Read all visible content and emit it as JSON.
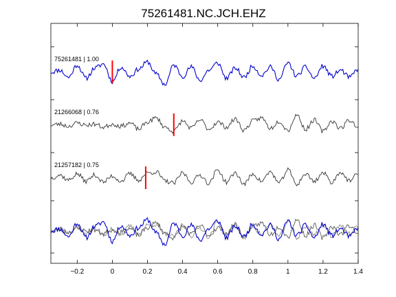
{
  "chart_data": {
    "type": "line",
    "title": "75261481.NC.JCH.EHZ",
    "xlabel": "",
    "ylabel": "",
    "xlim": [
      -0.35,
      1.4
    ],
    "x_ticks": [
      -0.2,
      0,
      0.2,
      0.4,
      0.6,
      0.8,
      1,
      1.2,
      1.4
    ],
    "x_tick_labels": [
      "−0.2",
      "0",
      "0.2",
      "0.4",
      "0.6",
      "0.8",
      "1",
      "1.2",
      "1.4"
    ],
    "grid": false,
    "legend": "none",
    "traces": [
      {
        "label": "75261481 | 1.00",
        "color": "#0000cc",
        "pick_time": 0.0,
        "baseline_offset": 0,
        "seed": 11,
        "points": [
          [
            -0.35,
            0.0
          ],
          [
            -0.3,
            0.2
          ],
          [
            -0.25,
            -0.5
          ],
          [
            -0.2,
            0.7
          ],
          [
            -0.15,
            -0.6
          ],
          [
            -0.1,
            0.4
          ],
          [
            -0.05,
            0.8
          ],
          [
            0,
            -0.9
          ],
          [
            0.05,
            0.5
          ],
          [
            0.1,
            -0.4
          ],
          [
            0.15,
            0.3
          ],
          [
            0.2,
            1.0
          ],
          [
            0.25,
            -0.2
          ],
          [
            0.3,
            -1.2
          ],
          [
            0.35,
            0.7
          ],
          [
            0.4,
            -0.4
          ],
          [
            0.45,
            0.5
          ],
          [
            0.5,
            -0.8
          ],
          [
            0.55,
            0.2
          ],
          [
            0.6,
            0.9
          ],
          [
            0.65,
            -0.6
          ],
          [
            0.7,
            0.4
          ],
          [
            0.75,
            -0.5
          ],
          [
            0.8,
            0.6
          ],
          [
            0.85,
            -0.3
          ],
          [
            0.9,
            0.5
          ],
          [
            0.95,
            -0.7
          ],
          [
            1.0,
            0.9
          ],
          [
            1.05,
            -0.4
          ],
          [
            1.1,
            0.5
          ],
          [
            1.15,
            -0.6
          ],
          [
            1.2,
            0.6
          ],
          [
            1.25,
            -0.4
          ],
          [
            1.3,
            0.2
          ],
          [
            1.35,
            -0.5
          ],
          [
            1.4,
            0.3
          ]
        ]
      },
      {
        "label": "21266068 | 0.76",
        "color": "#333333",
        "pick_time": 0.35,
        "baseline_offset": 1,
        "seed": 23,
        "points": [
          [
            -0.35,
            0.0
          ],
          [
            -0.3,
            0.1
          ],
          [
            -0.25,
            -0.1
          ],
          [
            -0.2,
            0.2
          ],
          [
            -0.15,
            0.0
          ],
          [
            -0.1,
            0.1
          ],
          [
            -0.05,
            -0.2
          ],
          [
            0,
            0.1
          ],
          [
            0.05,
            -0.1
          ],
          [
            0.1,
            0.2
          ],
          [
            0.15,
            -0.4
          ],
          [
            0.2,
            0.3
          ],
          [
            0.25,
            0.7
          ],
          [
            0.3,
            -0.2
          ],
          [
            0.35,
            -0.6
          ],
          [
            0.4,
            0.4
          ],
          [
            0.45,
            -0.3
          ],
          [
            0.5,
            0.5
          ],
          [
            0.55,
            -0.4
          ],
          [
            0.6,
            0.3
          ],
          [
            0.65,
            -0.2
          ],
          [
            0.7,
            0.6
          ],
          [
            0.75,
            -0.5
          ],
          [
            0.8,
            0.4
          ],
          [
            0.85,
            0.7
          ],
          [
            0.9,
            -0.3
          ],
          [
            0.95,
            0.4
          ],
          [
            1.0,
            -0.5
          ],
          [
            1.05,
            1.0
          ],
          [
            1.1,
            -0.4
          ],
          [
            1.15,
            0.5
          ],
          [
            1.2,
            -0.6
          ],
          [
            1.25,
            0.4
          ],
          [
            1.3,
            -0.3
          ],
          [
            1.35,
            0.5
          ],
          [
            1.4,
            -0.2
          ]
        ]
      },
      {
        "label": "21257182 | 0.75",
        "color": "#333333",
        "pick_time": 0.19,
        "baseline_offset": 2,
        "seed": 37,
        "points": [
          [
            -0.35,
            0.0
          ],
          [
            -0.3,
            0.3
          ],
          [
            -0.25,
            -0.2
          ],
          [
            -0.2,
            0.4
          ],
          [
            -0.15,
            -0.3
          ],
          [
            -0.1,
            0.3
          ],
          [
            -0.05,
            -0.4
          ],
          [
            0,
            0.2
          ],
          [
            0.05,
            -0.3
          ],
          [
            0.1,
            0.4
          ],
          [
            0.15,
            -0.2
          ],
          [
            0.2,
            0.5
          ],
          [
            0.25,
            0.6
          ],
          [
            0.3,
            -0.3
          ],
          [
            0.35,
            -0.5
          ],
          [
            0.4,
            0.5
          ],
          [
            0.45,
            -0.4
          ],
          [
            0.5,
            0.3
          ],
          [
            0.55,
            -0.5
          ],
          [
            0.6,
            0.8
          ],
          [
            0.65,
            -0.4
          ],
          [
            0.7,
            0.5
          ],
          [
            0.75,
            -0.6
          ],
          [
            0.8,
            0.4
          ],
          [
            0.85,
            -0.3
          ],
          [
            0.9,
            0.6
          ],
          [
            0.95,
            -0.5
          ],
          [
            1.0,
            0.8
          ],
          [
            1.05,
            -0.6
          ],
          [
            1.1,
            0.4
          ],
          [
            1.15,
            -0.3
          ],
          [
            1.2,
            0.5
          ],
          [
            1.25,
            -0.4
          ],
          [
            1.3,
            0.6
          ],
          [
            1.35,
            -0.3
          ],
          [
            1.4,
            0.4
          ]
        ]
      }
    ],
    "stack": {
      "baseline_offset": 3,
      "colors": [
        "#888888",
        "#555555",
        "#0000cc"
      ]
    }
  }
}
